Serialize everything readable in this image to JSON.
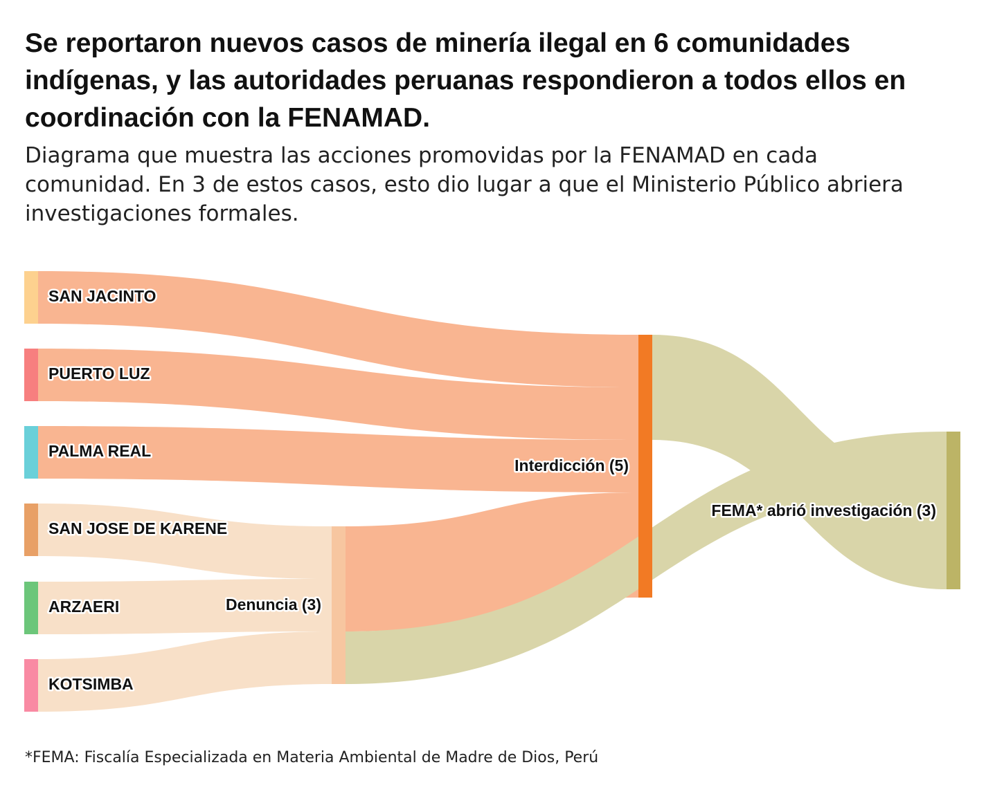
{
  "title": "Se reportaron nuevos casos de minería ilegal en 6 comunidades indígenas, y las autoridades peruanas respondieron a todos ellos en coordinación con la FENAMAD.",
  "subtitle": "Diagrama que muestra las acciones promovidas por la FENAMAD en cada comunidad. En 3 de estos casos, esto dio lugar a que el Ministerio Público abriera investigaciones formales.",
  "footnote": "*FEMA: Fiscalía Especializada en Materia Ambiental de Madre de Dios, Perú",
  "colors": {
    "flow_interdiccion": "#f9b591",
    "flow_denuncia": "#f8e0c8",
    "flow_fema": "#d9d5a9",
    "node_interdiccion": "#f27a24",
    "node_denuncia": "#f7c6a0",
    "node_fema": "#bcb466"
  },
  "nodes": {
    "san_jacinto": {
      "label": "SAN JACINTO",
      "color": "#fdd18f"
    },
    "puerto_luz": {
      "label": "PUERTO LUZ",
      "color": "#f77f7f"
    },
    "palma_real": {
      "label": "PALMA REAL",
      "color": "#6ad0d9"
    },
    "san_jose": {
      "label": "SAN JOSE DE KARENE",
      "color": "#e8a066"
    },
    "arzaeri": {
      "label": "ARZAERI",
      "color": "#6cc67a"
    },
    "kotsimba": {
      "label": "KOTSIMBA",
      "color": "#f98aa3"
    },
    "denuncia": {
      "label": "Denuncia (3)"
    },
    "interdiccion": {
      "label": "Interdicción (5)"
    },
    "fema": {
      "label": "FEMA* abrió investigación (3)"
    }
  },
  "flows": [
    {
      "source": "san_jacinto",
      "target": "interdiccion",
      "value": 1
    },
    {
      "source": "puerto_luz",
      "target": "interdiccion",
      "value": 1
    },
    {
      "source": "palma_real",
      "target": "interdiccion",
      "value": 1
    },
    {
      "source": "san_jose",
      "target": "denuncia",
      "value": 1
    },
    {
      "source": "arzaeri",
      "target": "denuncia",
      "value": 1
    },
    {
      "source": "kotsimba",
      "target": "denuncia",
      "value": 1
    },
    {
      "source": "denuncia",
      "target": "interdiccion",
      "value": 2
    },
    {
      "source": "denuncia",
      "target": "fema",
      "value": 1
    },
    {
      "source": "interdiccion",
      "target": "fema",
      "value": 2
    }
  ]
}
